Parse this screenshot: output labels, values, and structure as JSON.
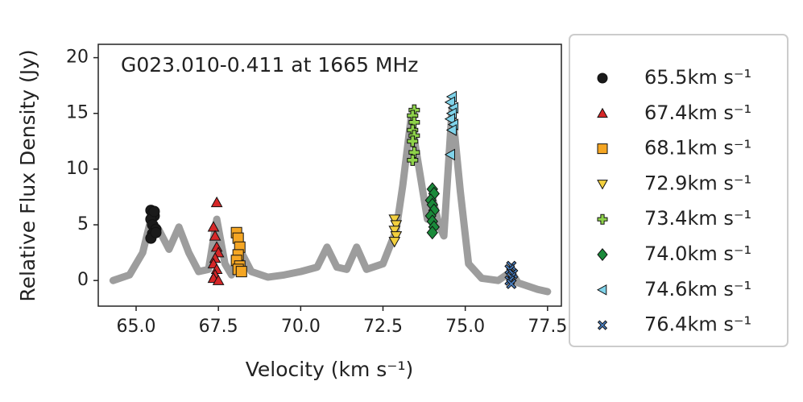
{
  "chart_data": {
    "type": "scatter",
    "title": "G023.010-0.411 at 1665 MHz",
    "x_label": "Velocity (km s⁻¹)",
    "y_label": "Relative Flux Density (Jy)",
    "xlim": [
      63.85,
      77.92
    ],
    "ylim": [
      -2.3,
      21.2
    ],
    "xticks": [
      {
        "value": 65,
        "label": "65.0"
      },
      {
        "value": 67.5,
        "label": "67.5"
      },
      {
        "value": 70,
        "label": "70.0"
      },
      {
        "value": 72.5,
        "label": "72.5"
      },
      {
        "value": 75,
        "label": "75.0"
      },
      {
        "value": 77.5,
        "label": "77.5"
      }
    ],
    "yticks": [
      0,
      5,
      10,
      15,
      20
    ],
    "legend": "outside-right",
    "series": [
      {
        "type": "line",
        "color": "#8c8c8c",
        "x": [
          64.3,
          64.8,
          65.2,
          65.45,
          65.7,
          66.0,
          66.3,
          66.6,
          66.9,
          67.2,
          67.45,
          67.7,
          67.9,
          68.15,
          68.5,
          69.0,
          69.5,
          70.0,
          70.5,
          70.8,
          71.1,
          71.4,
          71.7,
          72.0,
          72.5,
          72.9,
          73.1,
          73.35,
          73.6,
          73.85,
          74.0,
          74.2,
          74.35,
          74.6,
          74.85,
          75.1,
          75.5,
          76.0,
          76.4,
          76.6,
          76.9,
          77.2,
          77.5
        ],
        "values": [
          0,
          0.5,
          2.5,
          5.5,
          4.5,
          2.8,
          4.8,
          2.5,
          0.8,
          1.0,
          5.5,
          1.5,
          0.5,
          2.8,
          0.8,
          0.3,
          0.5,
          0.8,
          1.2,
          3.0,
          1.2,
          1.0,
          3.0,
          1.0,
          1.5,
          4.5,
          8.5,
          14.5,
          10.0,
          5.5,
          7.5,
          5.0,
          4.0,
          15.5,
          8.0,
          1.5,
          0.2,
          0,
          0.8,
          -0.2,
          -0.5,
          -0.8,
          -1.0
        ]
      },
      {
        "name": "65.5km s⁻¹",
        "marker": "o",
        "color": "#1a1a1a",
        "x": [
          65.45,
          65.5,
          65.55,
          65.45,
          65.5,
          65.6,
          65.5,
          65.45,
          65.6,
          65.55
        ],
        "values": [
          6.3,
          6.0,
          5.8,
          5.5,
          5.0,
          4.6,
          4.2,
          3.8,
          4.3,
          6.2
        ]
      },
      {
        "name": "67.4km s⁻¹",
        "marker": "^",
        "color": "#d62728",
        "x": [
          67.45,
          67.35,
          67.4,
          67.45,
          67.5,
          67.4,
          67.35,
          67.45,
          67.4,
          67.35,
          67.5
        ],
        "values": [
          7.0,
          4.8,
          4.0,
          3.0,
          2.5,
          2.0,
          1.5,
          1.0,
          0.5,
          0.2,
          0.0
        ]
      },
      {
        "name": "68.1km s⁻¹",
        "marker": "s",
        "color": "#f5a623",
        "x": [
          68.05,
          68.1,
          68.15,
          68.1,
          68.05,
          68.15,
          68.1,
          68.2
        ],
        "values": [
          4.3,
          3.8,
          3.0,
          2.3,
          1.8,
          1.3,
          1.0,
          0.8
        ]
      },
      {
        "name": "72.9km s⁻¹",
        "marker": "v",
        "color": "#f3d03e",
        "x": [
          72.85,
          72.9,
          72.85,
          72.9,
          72.85
        ],
        "values": [
          5.5,
          5.0,
          4.5,
          4.0,
          3.5
        ]
      },
      {
        "name": "73.4km s⁻¹",
        "marker": "+",
        "color": "#8ed24a",
        "x": [
          73.45,
          73.4,
          73.45,
          73.4,
          73.45,
          73.4,
          73.45,
          73.4
        ],
        "values": [
          15.3,
          14.8,
          14.2,
          13.5,
          13.0,
          12.5,
          11.5,
          10.8
        ]
      },
      {
        "name": "74.0km s⁻¹",
        "marker": "D",
        "color": "#1a8a3a",
        "x": [
          74.0,
          74.05,
          73.95,
          74.0,
          74.05,
          73.95,
          74.0,
          74.05,
          74.0
        ],
        "values": [
          8.2,
          7.8,
          7.2,
          6.8,
          6.3,
          5.8,
          5.3,
          4.8,
          4.3
        ]
      },
      {
        "name": "74.6km s⁻¹",
        "marker": "<",
        "color": "#7fd3ea",
        "x": [
          74.6,
          74.55,
          74.65,
          74.6,
          74.55,
          74.65,
          74.6,
          74.55
        ],
        "values": [
          16.5,
          16.0,
          15.5,
          15.0,
          14.5,
          14.0,
          13.5,
          11.3
        ]
      },
      {
        "name": "76.4km s⁻¹",
        "marker": "x",
        "color": "#4a7fc1",
        "x": [
          76.4,
          76.35,
          76.45,
          76.4,
          76.35,
          76.4
        ],
        "values": [
          1.3,
          1.0,
          0.6,
          0.3,
          0.0,
          -0.3
        ]
      }
    ]
  }
}
